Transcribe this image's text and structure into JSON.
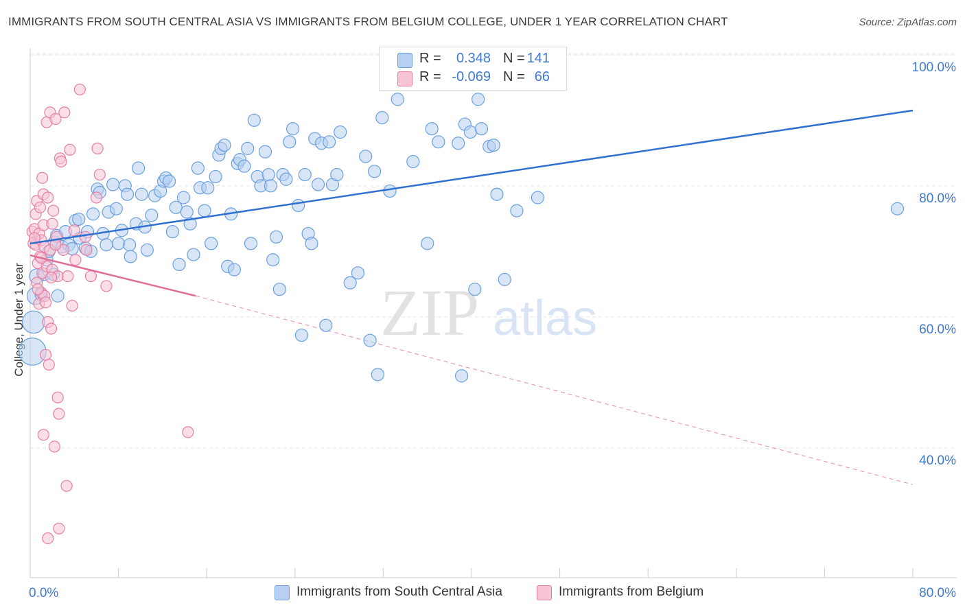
{
  "header": {
    "title": "IMMIGRANTS FROM SOUTH CENTRAL ASIA VS IMMIGRANTS FROM BELGIUM COLLEGE, UNDER 1 YEAR CORRELATION CHART",
    "source": "Source: ZipAtlas.com"
  },
  "watermark": {
    "zip": "ZIP",
    "atlas": "atlas"
  },
  "legend": {
    "r_label": "R =",
    "n_label": "N =",
    "rows": [
      {
        "r": "0.348",
        "n": "141"
      },
      {
        "r": "-0.069",
        "n": "66"
      }
    ]
  },
  "colors": {
    "blue": "#6a9fe0",
    "blue_fill": "#b7d0f1",
    "blue_line": "#2f6fcf",
    "pink": "#e87ea3",
    "pink_fill": "#f6c4d5",
    "pink_line": "#e06d96",
    "axis_text": "#3e7ad1",
    "grid": "#e6e6e6"
  },
  "chart_data": {
    "type": "scatter",
    "title": "IMMIGRANTS FROM SOUTH CENTRAL ASIA VS IMMIGRANTS FROM BELGIUM COLLEGE, UNDER 1 YEAR CORRELATION CHART",
    "xlabel": "",
    "ylabel": "College, Under 1 year",
    "xlim": [
      0,
      80
    ],
    "ylim": [
      20,
      102
    ],
    "x_ticks": [
      0,
      80
    ],
    "x_tick_labels": [
      "0.0%",
      "80.0%"
    ],
    "y_ticks": [
      40,
      60,
      80,
      100
    ],
    "y_tick_labels": [
      "40.0%",
      "60.0%",
      "80.0%",
      "100.0%"
    ],
    "grid": true,
    "legend_position": "top-center",
    "series": [
      {
        "name": "Immigrants from South Central Asia",
        "color": "#6a9fe0",
        "r": 0.348,
        "n": 141,
        "trend": {
          "x": [
            0,
            80
          ],
          "y": [
            73.0,
            93.3
          ]
        },
        "points": [
          [
            0.2,
            56.5,
            2.2
          ],
          [
            0.3,
            61.0,
            1.8
          ],
          [
            0.5,
            65.0,
            1.4
          ],
          [
            0.6,
            68.0,
            1.2
          ],
          [
            1.0,
            65.2,
            1.0
          ],
          [
            1.3,
            68.3,
            1.0
          ],
          [
            1.5,
            70.5,
            1.0
          ],
          [
            1.7,
            71.8,
            1.0
          ],
          [
            2.1,
            68.3,
            1.0
          ],
          [
            2.2,
            73.2,
            1.0
          ],
          [
            2.4,
            74.2,
            1.0
          ],
          [
            2.5,
            65.0,
            1.0
          ],
          [
            2.9,
            72.5,
            1.0
          ],
          [
            3.2,
            74.8,
            1.0
          ],
          [
            3.5,
            72.8,
            1.0
          ],
          [
            3.8,
            72.2,
            1.0
          ],
          [
            4.1,
            76.5,
            1.0
          ],
          [
            4.4,
            76.7,
            1.0
          ],
          [
            4.5,
            73.8,
            1.0
          ],
          [
            5.0,
            72.3,
            1.0
          ],
          [
            5.2,
            74.8,
            1.0
          ],
          [
            5.5,
            71.8,
            1.0
          ],
          [
            5.7,
            77.5,
            1.0
          ],
          [
            6.1,
            81.3,
            1.0
          ],
          [
            6.3,
            80.8,
            1.0
          ],
          [
            6.6,
            74.5,
            1.0
          ],
          [
            6.9,
            72.8,
            1.0
          ],
          [
            7.1,
            77.8,
            1.0
          ],
          [
            7.5,
            82.0,
            1.0
          ],
          [
            7.8,
            78.3,
            1.0
          ],
          [
            8.0,
            73.0,
            1.0
          ],
          [
            8.3,
            75.0,
            1.0
          ],
          [
            8.6,
            81.8,
            1.0
          ],
          [
            8.8,
            80.5,
            1.0
          ],
          [
            9.0,
            72.8,
            1.0
          ],
          [
            9.1,
            71.0,
            1.0
          ],
          [
            9.6,
            76.0,
            1.0
          ],
          [
            9.8,
            84.5,
            1.0
          ],
          [
            10.1,
            80.5,
            1.0
          ],
          [
            10.4,
            75.5,
            1.0
          ],
          [
            10.6,
            72.0,
            1.0
          ],
          [
            11.0,
            77.3,
            1.0
          ],
          [
            11.3,
            80.3,
            1.0
          ],
          [
            11.8,
            81.0,
            1.0
          ],
          [
            12.1,
            82.5,
            1.0
          ],
          [
            12.3,
            83.0,
            1.0
          ],
          [
            12.6,
            82.5,
            1.0
          ],
          [
            12.9,
            74.8,
            1.0
          ],
          [
            13.2,
            78.5,
            1.0
          ],
          [
            13.5,
            69.8,
            1.0
          ],
          [
            13.9,
            80.0,
            1.0
          ],
          [
            14.2,
            77.8,
            1.0
          ],
          [
            14.5,
            76.0,
            1.0
          ],
          [
            14.8,
            71.3,
            1.0
          ],
          [
            15.2,
            84.5,
            1.0
          ],
          [
            15.4,
            81.5,
            1.0
          ],
          [
            15.8,
            78.0,
            1.0
          ],
          [
            16.1,
            81.5,
            1.0
          ],
          [
            16.4,
            73.0,
            1.0
          ],
          [
            16.8,
            83.2,
            1.0
          ],
          [
            17.1,
            86.5,
            1.0
          ],
          [
            17.3,
            87.5,
            1.0
          ],
          [
            17.6,
            88.0,
            1.0
          ],
          [
            17.9,
            69.5,
            1.0
          ],
          [
            18.2,
            77.5,
            1.0
          ],
          [
            18.5,
            69.0,
            1.0
          ],
          [
            18.8,
            85.2,
            1.0
          ],
          [
            19.0,
            85.8,
            1.0
          ],
          [
            19.4,
            84.8,
            1.0
          ],
          [
            19.7,
            87.5,
            1.0
          ],
          [
            20.0,
            73.0,
            1.0
          ],
          [
            20.3,
            91.8,
            1.0
          ],
          [
            20.6,
            83.2,
            1.0
          ],
          [
            20.9,
            81.8,
            1.0
          ],
          [
            21.3,
            87.0,
            1.0
          ],
          [
            21.6,
            83.5,
            1.0
          ],
          [
            21.8,
            81.8,
            1.0
          ],
          [
            22.0,
            70.5,
            1.0
          ],
          [
            22.3,
            74.0,
            1.0
          ],
          [
            22.6,
            66.0,
            1.0
          ],
          [
            22.9,
            83.5,
            1.0
          ],
          [
            23.2,
            82.8,
            1.0
          ],
          [
            23.5,
            88.5,
            1.0
          ],
          [
            23.8,
            90.5,
            1.0
          ],
          [
            24.3,
            78.8,
            1.0
          ],
          [
            24.6,
            59.0,
            1.0
          ],
          [
            24.9,
            83.5,
            1.0
          ],
          [
            25.2,
            74.5,
            1.0
          ],
          [
            25.5,
            73.0,
            1.0
          ],
          [
            25.8,
            89.0,
            1.0
          ],
          [
            26.1,
            82.0,
            1.0
          ],
          [
            26.4,
            88.3,
            1.0
          ],
          [
            26.8,
            60.5,
            1.0
          ],
          [
            27.1,
            88.5,
            1.0
          ],
          [
            27.4,
            82.0,
            1.0
          ],
          [
            27.8,
            83.5,
            1.0
          ],
          [
            28.1,
            90.0,
            1.0
          ],
          [
            29.0,
            67.0,
            1.0
          ],
          [
            29.7,
            68.5,
            1.0
          ],
          [
            30.4,
            86.3,
            1.0
          ],
          [
            30.8,
            58.2,
            1.0
          ],
          [
            31.2,
            84.0,
            1.0
          ],
          [
            31.5,
            53.0,
            1.0
          ],
          [
            31.9,
            92.2,
            1.0
          ],
          [
            32.6,
            81.0,
            1.0
          ],
          [
            33.3,
            95.0,
            1.0
          ],
          [
            34.7,
            85.5,
            1.0
          ],
          [
            36.0,
            73.0,
            1.0
          ],
          [
            36.4,
            90.5,
            1.0
          ],
          [
            37.0,
            88.5,
            1.0
          ],
          [
            38.8,
            88.3,
            1.0
          ],
          [
            39.1,
            52.8,
            1.0
          ],
          [
            39.4,
            91.2,
            1.0
          ],
          [
            39.9,
            90.0,
            1.0
          ],
          [
            40.3,
            66.0,
            1.0
          ],
          [
            40.6,
            95.0,
            1.0
          ],
          [
            40.9,
            90.5,
            1.0
          ],
          [
            41.6,
            87.8,
            1.0
          ],
          [
            42.0,
            88.0,
            1.0
          ],
          [
            42.3,
            80.5,
            1.0
          ],
          [
            43.0,
            67.5,
            1.0
          ],
          [
            44.1,
            78.0,
            1.0
          ],
          [
            46.0,
            80.0,
            1.0
          ],
          [
            78.6,
            78.3,
            1.0
          ]
        ]
      },
      {
        "name": "Immigrants from Belgium",
        "color": "#e87ea3",
        "r": -0.069,
        "n": 66,
        "trend": {
          "x": [
            0,
            15
          ],
          "y": [
            71.2,
            65.0
          ]
        },
        "trend_extended": {
          "x": [
            15,
            80
          ],
          "y": [
            65.0,
            36.2
          ]
        },
        "points": [
          [
            0.2,
            74.8,
            1.0
          ],
          [
            0.3,
            73.0,
            1.0
          ],
          [
            0.4,
            75.2,
            1.0
          ],
          [
            0.5,
            72.8,
            1.0
          ],
          [
            0.5,
            77.5,
            1.0
          ],
          [
            0.6,
            79.5,
            1.0
          ],
          [
            0.6,
            67.0,
            1.0
          ],
          [
            0.7,
            70.0,
            1.0
          ],
          [
            0.8,
            63.8,
            1.0
          ],
          [
            0.8,
            74.5,
            1.0
          ],
          [
            0.9,
            71.0,
            1.0
          ],
          [
            0.9,
            78.5,
            1.0
          ],
          [
            1.0,
            65.5,
            1.0
          ],
          [
            1.0,
            73.5,
            1.0
          ],
          [
            1.1,
            68.5,
            1.0
          ],
          [
            1.1,
            83.0,
            1.0
          ],
          [
            1.2,
            80.5,
            1.0
          ],
          [
            1.2,
            75.8,
            1.0
          ],
          [
            1.3,
            72.5,
            1.0
          ],
          [
            1.3,
            65.0,
            1.0
          ],
          [
            1.4,
            64.0,
            1.0
          ],
          [
            1.4,
            56.0,
            1.0
          ],
          [
            1.5,
            69.5,
            1.0
          ],
          [
            1.5,
            91.5,
            1.0
          ],
          [
            1.6,
            80.0,
            1.0
          ],
          [
            1.6,
            61.0,
            1.0
          ],
          [
            1.7,
            54.5,
            1.0
          ],
          [
            1.8,
            93.0,
            1.0
          ],
          [
            1.8,
            72.0,
            1.0
          ],
          [
            1.9,
            60.0,
            1.0
          ],
          [
            2.0,
            76.0,
            1.0
          ],
          [
            2.0,
            69.0,
            1.0
          ],
          [
            2.1,
            78.0,
            1.0
          ],
          [
            2.2,
            42.0,
            1.0
          ],
          [
            2.3,
            92.0,
            1.0
          ],
          [
            2.4,
            74.0,
            1.0
          ],
          [
            2.5,
            49.5,
            1.0
          ],
          [
            2.5,
            68.0,
            1.0
          ],
          [
            2.6,
            47.0,
            1.0
          ],
          [
            2.6,
            29.5,
            1.0
          ],
          [
            2.7,
            86.0,
            1.0
          ],
          [
            2.8,
            85.5,
            1.0
          ],
          [
            3.0,
            72.0,
            1.0
          ],
          [
            3.1,
            93.0,
            1.0
          ],
          [
            3.3,
            36.0,
            1.0
          ],
          [
            3.4,
            68.0,
            1.0
          ],
          [
            3.6,
            87.3,
            1.0
          ],
          [
            3.8,
            63.5,
            1.0
          ],
          [
            4.0,
            75.0,
            1.0
          ],
          [
            4.1,
            70.5,
            1.0
          ],
          [
            4.5,
            96.5,
            1.0
          ],
          [
            5.0,
            74.0,
            1.0
          ],
          [
            5.1,
            72.0,
            1.0
          ],
          [
            5.5,
            68.0,
            1.0
          ],
          [
            6.0,
            80.0,
            1.0
          ],
          [
            6.1,
            87.5,
            1.0
          ],
          [
            6.3,
            83.5,
            1.0
          ],
          [
            6.9,
            66.5,
            1.0
          ],
          [
            14.3,
            44.2,
            1.0
          ],
          [
            1.2,
            43.8,
            1.0
          ],
          [
            1.6,
            28.0,
            1.0
          ],
          [
            0.7,
            66.0,
            1.0
          ],
          [
            1.0,
            70.8,
            1.0
          ],
          [
            2.3,
            72.8,
            1.0
          ],
          [
            1.9,
            67.8,
            1.0
          ],
          [
            0.4,
            73.8,
            1.0
          ]
        ]
      }
    ]
  },
  "bottom_legend": [
    {
      "label": "Immigrants from South Central Asia"
    },
    {
      "label": "Immigrants from Belgium"
    }
  ]
}
